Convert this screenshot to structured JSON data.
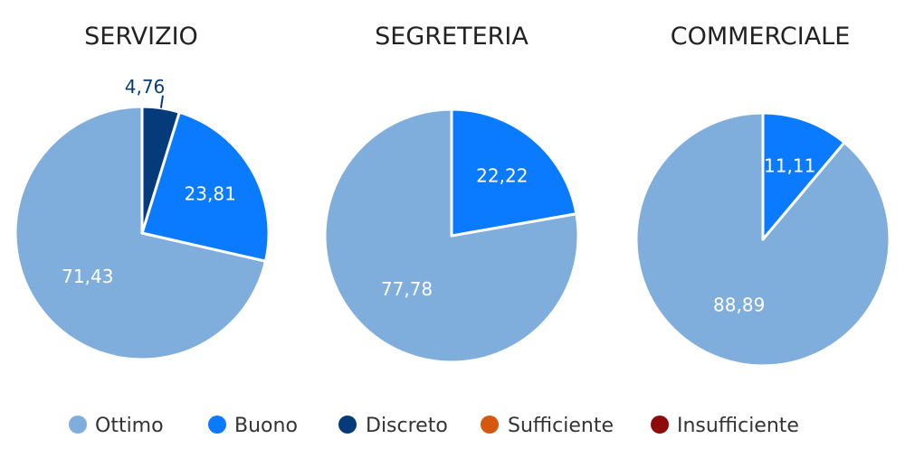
{
  "legend": [
    "Ottimo",
    "Buono",
    "Discreto",
    "Sufficiente",
    "Insufficiente"
  ],
  "colors": {
    "Ottimo": "#7FAEDD",
    "Buono": "#0A7BFF",
    "Discreto": "#053B7A",
    "Sufficiente": "#D5580E",
    "Insufficiente": "#8E0B0B"
  },
  "chart_data": [
    {
      "type": "pie",
      "title": "SERVIZIO",
      "legend_position": "bottom",
      "slices": [
        {
          "label": "Ottimo",
          "value": 71.43,
          "text": "71,43"
        },
        {
          "label": "Buono",
          "value": 23.81,
          "text": "23,81"
        },
        {
          "label": "Discreto",
          "value": 4.76,
          "text": "4,76"
        }
      ]
    },
    {
      "type": "pie",
      "title": "SEGRETERIA",
      "legend_position": "bottom",
      "slices": [
        {
          "label": "Ottimo",
          "value": 77.78,
          "text": "77,78"
        },
        {
          "label": "Buono",
          "value": 22.22,
          "text": "22,22"
        }
      ]
    },
    {
      "type": "pie",
      "title": "COMMERCIALE",
      "legend_position": "bottom",
      "slices": [
        {
          "label": "Ottimo",
          "value": 88.89,
          "text": "88,89"
        },
        {
          "label": "Buono",
          "value": 11.11,
          "text": "11,11"
        }
      ]
    }
  ]
}
